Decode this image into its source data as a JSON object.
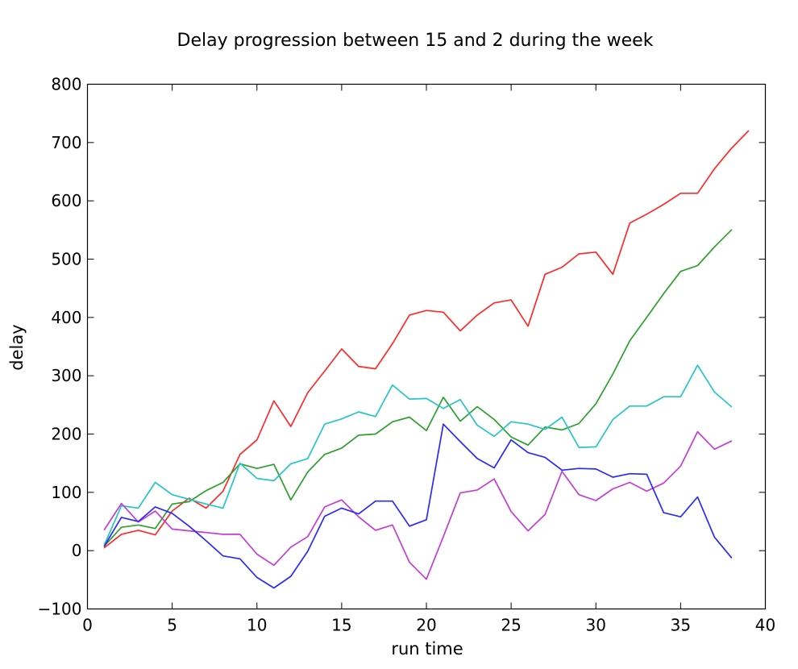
{
  "chart_data": {
    "type": "line",
    "title": "Delay progression between 15 and 2 during the week",
    "xlabel": "run time",
    "ylabel": "delay",
    "xlim": [
      0,
      40
    ],
    "ylim": [
      -100,
      800
    ],
    "xticks": [
      0,
      5,
      10,
      15,
      20,
      25,
      30,
      35,
      40
    ],
    "yticks": [
      -100,
      0,
      100,
      200,
      300,
      400,
      500,
      600,
      700,
      800
    ],
    "xtick_labels": [
      "0",
      "5",
      "10",
      "15",
      "20",
      "25",
      "30",
      "35",
      "40"
    ],
    "ytick_labels": [
      "−100",
      "0",
      "100",
      "200",
      "300",
      "400",
      "500",
      "600",
      "700",
      "800"
    ],
    "grid": false,
    "legend": "none",
    "series": [
      {
        "color": "#ff2a2a",
        "x": [
          1,
          2,
          3,
          4,
          5,
          6,
          7,
          8,
          9,
          10,
          11,
          12,
          13,
          14,
          15,
          16,
          17,
          18,
          19,
          20,
          21,
          22,
          23,
          24,
          25,
          26,
          27,
          28,
          29,
          30,
          31,
          32,
          33,
          34,
          35,
          36,
          37,
          38,
          39
        ],
        "values": [
          5,
          28,
          35,
          27,
          68,
          90,
          73,
          102,
          165,
          190,
          257,
          213,
          271,
          308,
          346,
          316,
          312,
          355,
          404,
          412,
          409,
          377,
          404,
          425,
          430,
          385,
          474,
          486,
          509,
          512,
          474,
          562,
          577,
          594,
          613,
          613,
          655,
          690,
          720
        ]
      },
      {
        "color": "#2ca02c",
        "x": [
          1,
          2,
          3,
          4,
          5,
          6,
          7,
          8,
          9,
          10,
          11,
          12,
          13,
          14,
          15,
          16,
          17,
          18,
          19,
          20,
          21,
          22,
          23,
          24,
          25,
          26,
          27,
          28,
          29,
          30,
          31,
          32,
          33,
          34,
          35,
          36,
          37,
          38
        ],
        "values": [
          8,
          40,
          44,
          38,
          80,
          84,
          103,
          117,
          149,
          141,
          148,
          87,
          135,
          165,
          176,
          198,
          200,
          221,
          229,
          206,
          263,
          222,
          247,
          225,
          195,
          181,
          212,
          207,
          218,
          252,
          303,
          360,
          400,
          441,
          479,
          489,
          521,
          550
        ]
      },
      {
        "color": "#26c6c6",
        "x": [
          1,
          2,
          3,
          4,
          5,
          6,
          7,
          8,
          9,
          10,
          11,
          12,
          13,
          14,
          15,
          16,
          17,
          18,
          19,
          20,
          21,
          22,
          23,
          24,
          25,
          26,
          27,
          28,
          29,
          30,
          31,
          32,
          33,
          34,
          35,
          36,
          37,
          38
        ],
        "values": [
          10,
          77,
          73,
          117,
          96,
          88,
          80,
          73,
          150,
          124,
          120,
          149,
          158,
          217,
          226,
          238,
          230,
          284,
          260,
          261,
          244,
          259,
          215,
          196,
          221,
          217,
          208,
          229,
          177,
          178,
          225,
          248,
          248,
          264,
          264,
          318,
          272,
          247
        ]
      },
      {
        "color": "#c43cd6",
        "x": [
          1,
          2,
          3,
          4,
          5,
          6,
          7,
          8,
          9,
          10,
          11,
          12,
          13,
          14,
          15,
          16,
          17,
          18,
          19,
          20,
          21,
          22,
          23,
          24,
          25,
          26,
          27,
          28,
          29,
          30,
          31,
          32,
          33,
          34,
          35,
          36,
          37,
          38
        ],
        "values": [
          36,
          81,
          49,
          68,
          37,
          34,
          31,
          28,
          28,
          -6,
          -25,
          6,
          24,
          75,
          87,
          58,
          35,
          44,
          -20,
          -49,
          24,
          99,
          104,
          123,
          67,
          34,
          62,
          136,
          96,
          86,
          106,
          117,
          102,
          116,
          145,
          204,
          174,
          188
        ]
      },
      {
        "color": "#2a2aff",
        "x": [
          1,
          2,
          3,
          4,
          5,
          6,
          7,
          8,
          9,
          10,
          11,
          12,
          13,
          14,
          15,
          16,
          17,
          18,
          19,
          20,
          21,
          22,
          23,
          24,
          25,
          26,
          27,
          28,
          29,
          30,
          31,
          32,
          33,
          34,
          35,
          36,
          37,
          38
        ],
        "values": [
          8,
          57,
          50,
          75,
          64,
          42,
          17,
          -9,
          -14,
          -46,
          -64,
          -44,
          -1,
          59,
          73,
          63,
          85,
          85,
          42,
          53,
          217,
          187,
          158,
          142,
          190,
          168,
          160,
          138,
          141,
          140,
          126,
          132,
          131,
          65,
          58,
          92,
          23,
          -12
        ]
      }
    ]
  }
}
